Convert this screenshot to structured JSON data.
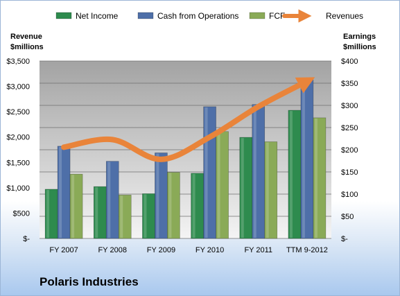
{
  "company_label": "Polaris Industries",
  "colors": {
    "net_income": "#2e8b4e",
    "cash_ops": "#4e6fa8",
    "fcf": "#8aaa57",
    "revenues": "#e9843a",
    "plot_bg_top": "#a3a3a3",
    "plot_bg_bottom": "#f4f4f4"
  },
  "chart_data": {
    "type": "bar",
    "categories": [
      "FY 2007",
      "FY 2008",
      "FY 2009",
      "FY 2010",
      "FY 2011",
      "TTM 9-2012"
    ],
    "left_axis": {
      "title_lines": [
        "Revenue",
        "$millions"
      ],
      "range": [
        0,
        3500
      ],
      "ticks": [
        0,
        500,
        1000,
        1500,
        2000,
        2500,
        3000,
        3500
      ],
      "tick_labels": [
        "$-",
        "$500",
        "$1,000",
        "$1,500",
        "$2,000",
        "$2,500",
        "$3,000",
        "$3,500"
      ]
    },
    "right_axis": {
      "title_lines": [
        "Earnings",
        "$millions"
      ],
      "range": [
        0,
        400
      ],
      "ticks": [
        0,
        50,
        100,
        150,
        200,
        250,
        300,
        350,
        400
      ],
      "tick_labels": [
        "$-",
        "$50",
        "$100",
        "$150",
        "$200",
        "$250",
        "$300",
        "$350",
        "$400"
      ]
    },
    "series": [
      {
        "name": "Net Income",
        "kind": "bar",
        "axis": "right",
        "color": "#2e8b4e",
        "values": [
          111,
          117,
          101,
          147,
          228,
          289
        ]
      },
      {
        "name": "Cash from Operations",
        "kind": "bar",
        "axis": "right",
        "color": "#4e6fa8",
        "values": [
          208,
          174,
          193,
          297,
          302,
          357
        ]
      },
      {
        "name": "FCF",
        "kind": "bar",
        "axis": "right",
        "color": "#8aaa57",
        "values": [
          145,
          98,
          149,
          241,
          218,
          272
        ]
      },
      {
        "name": "Revenues",
        "kind": "line",
        "axis": "left",
        "color": "#e9843a",
        "values": [
          1800,
          1950,
          1560,
          2000,
          2600,
          3100
        ]
      }
    ],
    "legend_position": "top",
    "grid": true
  }
}
